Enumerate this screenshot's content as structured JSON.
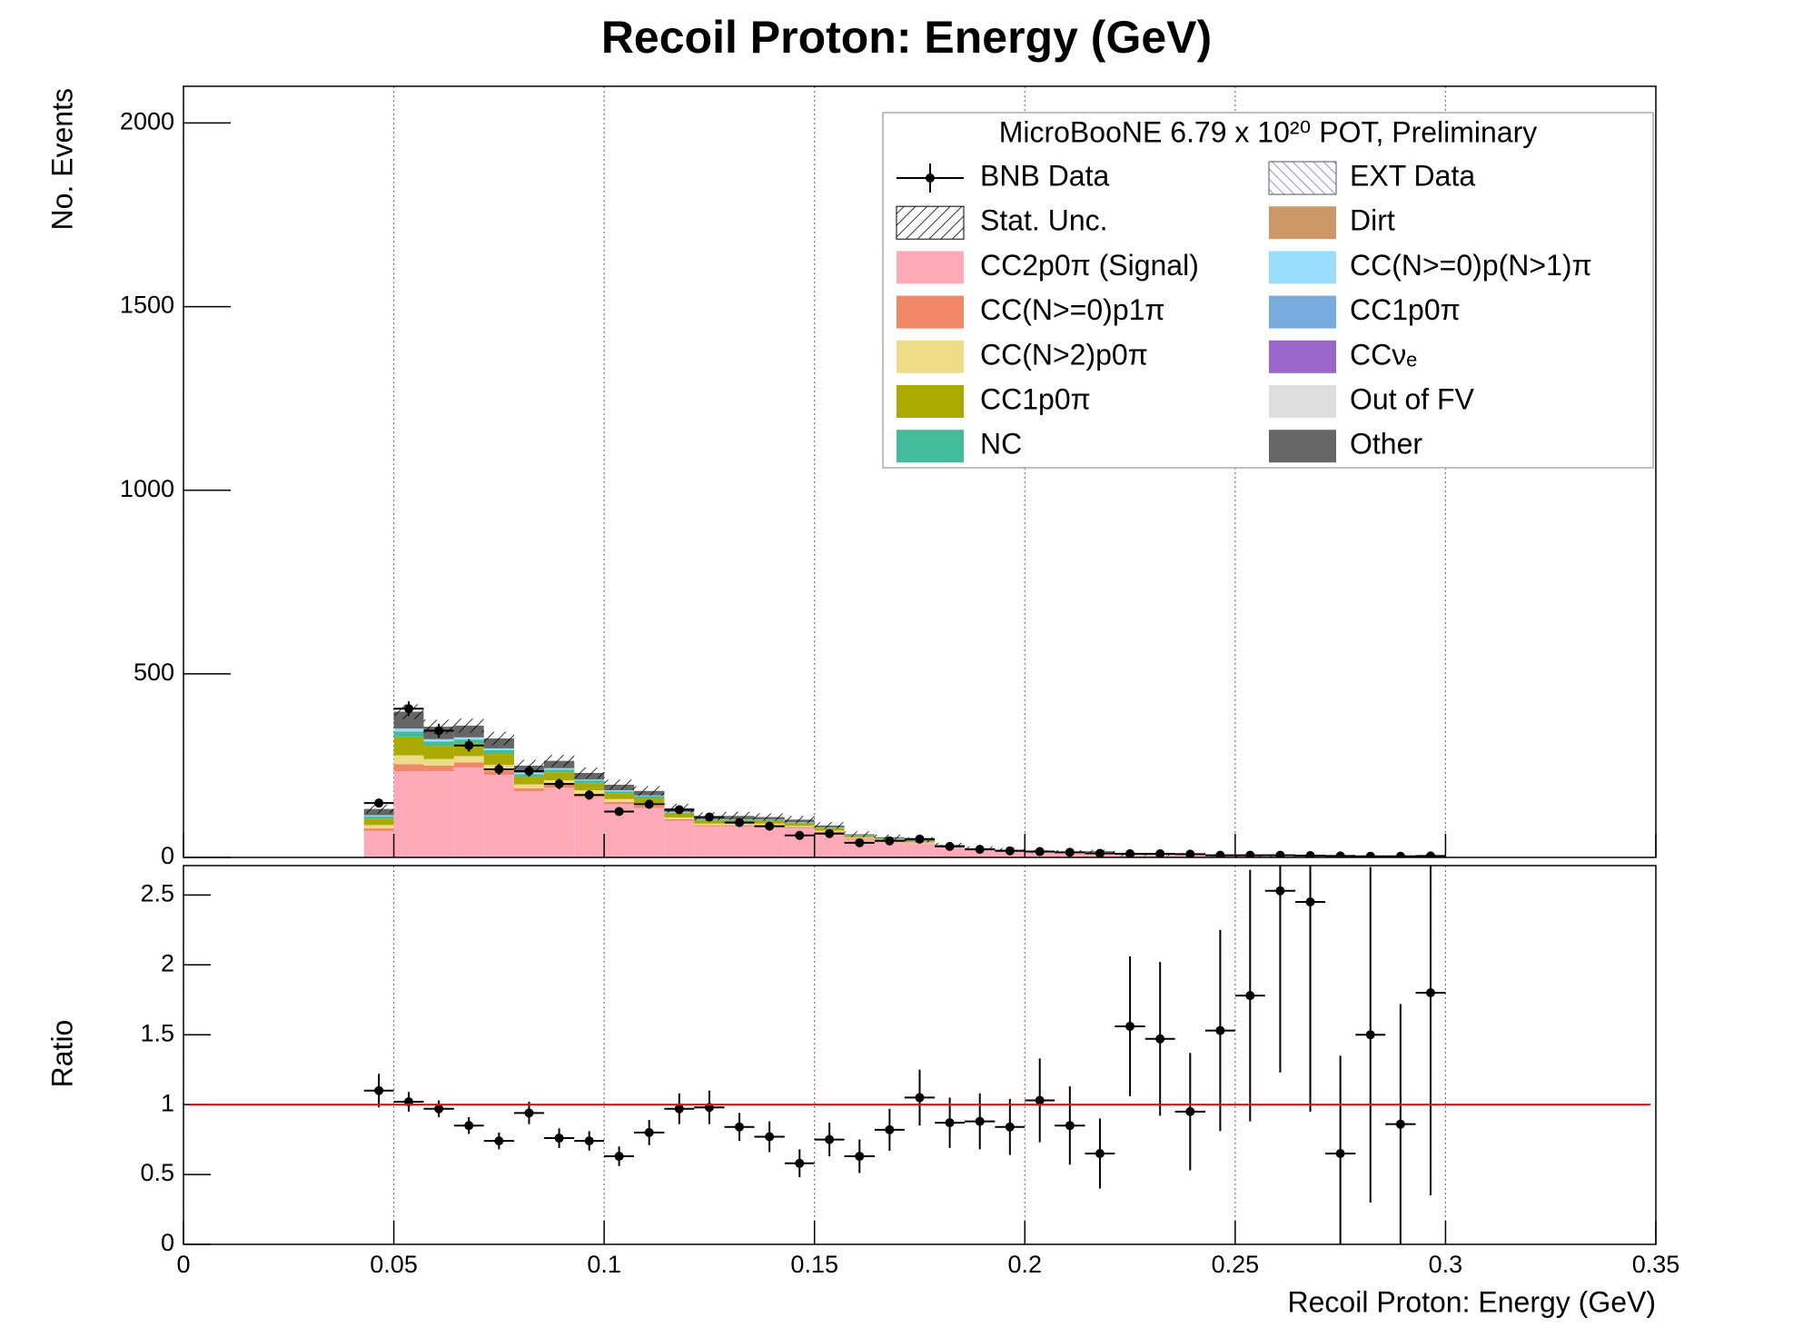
{
  "chart_data": {
    "type": "stacked_histogram",
    "title": "Recoil Proton: Energy (GeV)",
    "ylabel": "No. Events",
    "xlabel": "Recoil Proton: Energy (GeV)",
    "legend_title": "MicroBooNE 6.79 x 10²⁰ POT, Preliminary",
    "xlim": [
      0,
      0.35
    ],
    "ylim": [
      0,
      2100
    ],
    "yticks": [
      0,
      500,
      1000,
      1500,
      2000
    ],
    "grid": true,
    "bins": [
      0.0429,
      0.05,
      0.0571,
      0.0643,
      0.0714,
      0.0786,
      0.0857,
      0.0929,
      0.1,
      0.1071,
      0.1143,
      0.1214,
      0.1286,
      0.1357,
      0.1429,
      0.15,
      0.1571,
      0.1643,
      0.1714,
      0.1786,
      0.1857,
      0.1929,
      0.2,
      0.2071,
      0.2143,
      0.2214,
      0.2286,
      0.2357,
      0.2429,
      0.25,
      0.2571,
      0.2643,
      0.2714,
      0.2786,
      0.2857,
      0.2929,
      0.3
    ],
    "data": {
      "name": "BNB Data",
      "color": "#000000",
      "values": [
        148,
        405,
        345,
        305,
        240,
        235,
        200,
        170,
        125,
        145,
        130,
        110,
        95,
        85,
        60,
        65,
        40,
        45,
        50,
        30,
        22,
        18,
        16,
        14,
        11,
        10,
        10,
        9,
        6,
        6,
        6,
        5,
        4,
        3,
        3,
        4
      ],
      "errors": [
        12,
        20,
        19,
        17,
        15,
        15,
        14,
        13,
        11,
        12,
        11,
        10,
        10,
        9,
        8,
        8,
        6,
        7,
        7,
        5,
        5,
        4,
        4,
        4,
        3,
        3,
        3,
        3,
        2,
        2,
        2,
        2,
        2,
        2,
        2,
        2
      ]
    },
    "stat_unc": {
      "name": "Stat. Unc.",
      "values": [
        12,
        20,
        19,
        19,
        18,
        16,
        16,
        15,
        14,
        13,
        12,
        11,
        11,
        10,
        10,
        9,
        8,
        7,
        7,
        6,
        5,
        5,
        4,
        4,
        4,
        3,
        3,
        3,
        2,
        2,
        2,
        1,
        1,
        1,
        1,
        1
      ]
    },
    "series": [
      {
        "name": "CC2p0π (Signal)",
        "color": "#ffaab8",
        "values": [
          72,
          235,
          235,
          245,
          225,
          180,
          190,
          165,
          145,
          135,
          100,
          85,
          85,
          85,
          80,
          68,
          50,
          43,
          38,
          27,
          20,
          17,
          13,
          13,
          14,
          5,
          5.5,
          8,
          3.2,
          2.8,
          2,
          1.6,
          5,
          1.6,
          3,
          1.8
        ]
      },
      {
        "name": "CC(N>=0)p1π",
        "color": "#f08868",
        "values": [
          7,
          19,
          15,
          14,
          12,
          8,
          9,
          8,
          6,
          6,
          4,
          3,
          3,
          3,
          3,
          2,
          2,
          1,
          1,
          1,
          1,
          0,
          0,
          0,
          0,
          0,
          0,
          0,
          0,
          0,
          0,
          0,
          0,
          0,
          0,
          0
        ]
      },
      {
        "name": "CC(N>2)p0π",
        "color": "#eedd88",
        "values": [
          9,
          24,
          18,
          17,
          15,
          11,
          11,
          10,
          8,
          7,
          5,
          4,
          4,
          4,
          3,
          3,
          2,
          2,
          2,
          1,
          1,
          1,
          0,
          0,
          0,
          0,
          0,
          0,
          0,
          0,
          0,
          0,
          0,
          0,
          0,
          0
        ]
      },
      {
        "name": "CC1p0π",
        "color": "#aaaa00",
        "values": [
          18,
          49,
          36,
          34,
          30,
          21,
          22,
          19,
          16,
          14,
          10,
          8,
          8,
          7,
          7,
          6,
          4,
          4,
          3,
          2,
          1,
          1,
          1,
          1,
          1,
          0.5,
          0.5,
          0.5,
          0.3,
          0.2,
          0.2,
          0.2,
          0.5,
          0.2,
          0.2,
          0.2
        ]
      },
      {
        "name": "NC",
        "color": "#44bb99",
        "values": [
          6,
          16,
          12,
          11,
          10,
          7,
          7,
          7,
          5,
          5,
          3,
          3,
          3,
          3,
          2,
          2,
          1,
          1,
          1,
          1,
          0,
          0,
          0,
          0,
          0,
          0,
          0,
          0,
          0,
          0,
          0,
          0,
          0,
          0,
          0,
          0
        ]
      },
      {
        "name": "EXT Data",
        "color": "#8866cc",
        "hatch": true,
        "values": [
          0,
          0,
          0,
          0,
          0,
          0,
          0,
          0,
          0,
          0,
          0,
          0,
          0,
          0,
          0,
          0,
          0,
          0,
          0,
          0,
          0,
          0,
          0,
          0,
          0,
          0,
          0,
          0,
          0,
          0,
          0,
          0,
          0,
          0,
          0,
          0
        ]
      },
      {
        "name": "Dirt",
        "color": "#cc9966",
        "values": [
          0,
          0,
          0,
          0,
          0,
          0,
          0,
          0,
          0,
          0,
          0,
          0,
          0,
          0,
          0,
          0,
          0,
          0,
          0,
          0,
          0,
          0,
          0,
          0,
          0,
          0,
          0,
          0,
          0,
          0,
          0,
          0,
          0,
          0,
          0,
          0
        ]
      },
      {
        "name": "CC(N>=0)p(N>1)π",
        "color": "#99ddff",
        "values": [
          3,
          8,
          6,
          6,
          5,
          4,
          4,
          3,
          3,
          2,
          2,
          1,
          1,
          1,
          1,
          1,
          1,
          1,
          0,
          0,
          0,
          0,
          0,
          0,
          0,
          0,
          0,
          0,
          0,
          0,
          0,
          0,
          0,
          0,
          0,
          0
        ]
      },
      {
        "name": "CC1p0π",
        "color": "#77aadd",
        "values": [
          0,
          0,
          0,
          0,
          0,
          0,
          0,
          0,
          0,
          0,
          0,
          0,
          0,
          0,
          0,
          0,
          0,
          0,
          0,
          0,
          0,
          0,
          0,
          0,
          0,
          0,
          0,
          0,
          0,
          0,
          0,
          0,
          0,
          0,
          0,
          0
        ]
      },
      {
        "name": "CCνₑ",
        "color": "#9966cc",
        "values": [
          0,
          0,
          0,
          0,
          0,
          0,
          0,
          0,
          0,
          0,
          0,
          0,
          0,
          0,
          0,
          0,
          0,
          0,
          0,
          0,
          0,
          0,
          0,
          0,
          0,
          0,
          0,
          0,
          0,
          0,
          0,
          0,
          0,
          0,
          0,
          0
        ]
      },
      {
        "name": "Out of FV",
        "color": "#dddddd",
        "values": [
          0,
          0,
          0,
          0,
          0,
          0,
          0,
          0,
          0,
          0,
          0,
          0,
          0,
          0,
          0,
          0,
          0,
          0,
          0,
          0,
          0,
          0,
          0,
          0,
          0,
          0,
          0,
          0,
          0,
          0,
          0,
          0,
          0,
          0,
          0,
          0
        ]
      },
      {
        "name": "Other",
        "color": "#666666",
        "values": [
          17,
          46,
          34,
          32,
          27,
          19,
          20,
          18,
          15,
          12,
          10,
          8,
          9,
          7,
          7,
          5,
          3,
          3,
          3,
          2,
          2,
          2,
          2,
          2,
          2,
          0.9,
          0.8,
          1,
          0.5,
          0.4,
          0.2,
          0.2,
          0.5,
          0.2,
          0.3,
          0.2
        ]
      }
    ],
    "ratio": {
      "ylabel": "Ratio",
      "ylim": [
        0,
        2.71
      ],
      "yticks": [
        0,
        0.5,
        1,
        1.5,
        2,
        2.5
      ],
      "xticks": [
        0,
        0.05,
        0.1,
        0.15,
        0.2,
        0.25,
        0.3,
        0.35
      ],
      "ref_line": 1,
      "ref_color": "#ff0000",
      "values": [
        1.1,
        1.02,
        0.97,
        0.85,
        0.74,
        0.94,
        0.76,
        0.74,
        0.63,
        0.8,
        0.97,
        0.98,
        0.84,
        0.77,
        0.58,
        0.75,
        0.63,
        0.82,
        1.05,
        0.87,
        0.88,
        0.84,
        1.03,
        0.85,
        0.65,
        1.56,
        1.47,
        0.95,
        1.53,
        1.78,
        2.53,
        2.45,
        0.65,
        1.5,
        0.86,
        1.8
      ],
      "errors": [
        0.12,
        0.07,
        0.06,
        0.06,
        0.06,
        0.08,
        0.07,
        0.07,
        0.07,
        0.09,
        0.11,
        0.12,
        0.1,
        0.11,
        0.1,
        0.12,
        0.12,
        0.15,
        0.2,
        0.18,
        0.2,
        0.2,
        0.3,
        0.28,
        0.25,
        0.5,
        0.55,
        0.42,
        0.72,
        0.9,
        1.3,
        1.5,
        0.7,
        1.2,
        0.86,
        1.45
      ]
    }
  }
}
